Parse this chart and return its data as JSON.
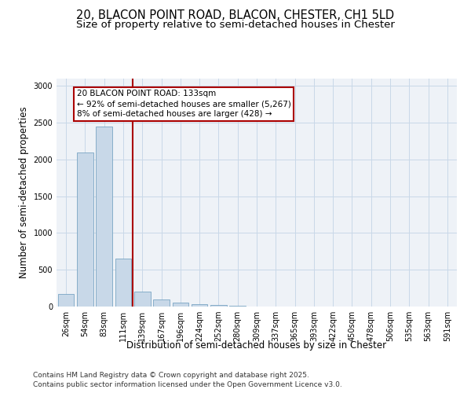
{
  "title_line1": "20, BLACON POINT ROAD, BLACON, CHESTER, CH1 5LD",
  "title_line2": "Size of property relative to semi-detached houses in Chester",
  "xlabel": "Distribution of semi-detached houses by size in Chester",
  "ylabel": "Number of semi-detached properties",
  "bin_labels": [
    "26sqm",
    "54sqm",
    "83sqm",
    "111sqm",
    "139sqm",
    "167sqm",
    "196sqm",
    "224sqm",
    "252sqm",
    "280sqm",
    "309sqm",
    "337sqm",
    "365sqm",
    "393sqm",
    "422sqm",
    "450sqm",
    "478sqm",
    "506sqm",
    "535sqm",
    "563sqm",
    "591sqm"
  ],
  "bar_heights": [
    170,
    2100,
    2450,
    650,
    200,
    100,
    55,
    35,
    20,
    15,
    5,
    2,
    2,
    1,
    1,
    0,
    0,
    0,
    0,
    0,
    0
  ],
  "bar_color": "#c8d8e8",
  "bar_edge_color": "#6699bb",
  "property_label": "20 BLACON POINT ROAD: 133sqm",
  "annotation_line1": "← 92% of semi-detached houses are smaller (5,267)",
  "annotation_line2": "8% of semi-detached houses are larger (428) →",
  "vline_color": "#aa0000",
  "annotation_box_color": "#aa0000",
  "vline_bin_index": 4,
  "ylim": [
    0,
    3100
  ],
  "yticks": [
    0,
    500,
    1000,
    1500,
    2000,
    2500,
    3000
  ],
  "grid_color": "#c8d8e8",
  "background_color": "#eef2f7",
  "footer_line1": "Contains HM Land Registry data © Crown copyright and database right 2025.",
  "footer_line2": "Contains public sector information licensed under the Open Government Licence v3.0.",
  "title_fontsize": 10.5,
  "subtitle_fontsize": 9.5,
  "axis_label_fontsize": 8.5,
  "tick_fontsize": 7,
  "annotation_fontsize": 7.5,
  "footer_fontsize": 6.5
}
